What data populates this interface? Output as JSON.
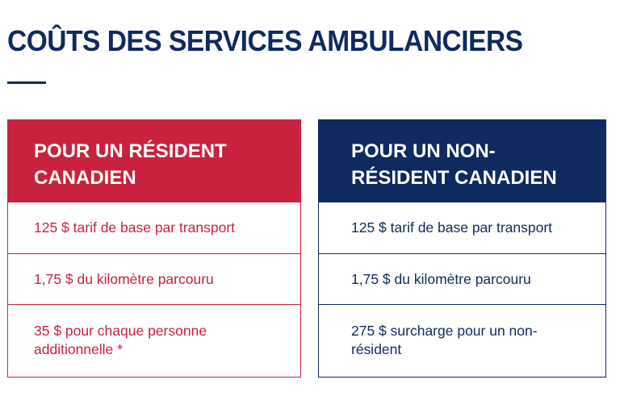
{
  "page": {
    "title": "COÛTS DES SERVICES AMBULANCIERS"
  },
  "colors": {
    "navy": "#0f2a5f",
    "red": "#c8223f"
  },
  "cards": [
    {
      "header": "POUR UN RÉSIDENT CANADIEN",
      "rows": [
        "125 $ tarif de base par transport",
        "1,75 $ du kilomètre parcouru",
        "35 $ pour chaque personne additionnelle *"
      ]
    },
    {
      "header": "POUR UN NON-RÉSIDENT CANADIEN",
      "rows": [
        "125 $ tarif de base par transport",
        "1,75 $ du kilomètre parcouru",
        "275 $ surcharge pour un non-résident"
      ]
    }
  ]
}
